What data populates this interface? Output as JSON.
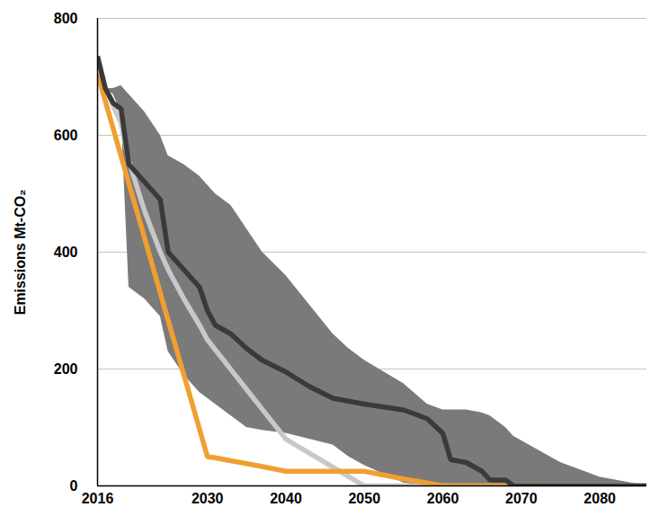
{
  "chart_data": {
    "type": "line",
    "y_label": "Emissions Mt-CO₂",
    "x": [
      2016,
      2017,
      2018,
      2019,
      2020,
      2022,
      2024,
      2025,
      2027,
      2029,
      2030,
      2031,
      2033,
      2035,
      2037,
      2040,
      2043,
      2046,
      2048,
      2050,
      2055,
      2058,
      2060,
      2061,
      2063,
      2065,
      2066,
      2068,
      2069,
      2075,
      2080,
      2086
    ],
    "xlim": [
      2016,
      2086
    ],
    "xticks": [
      2016,
      2030,
      2040,
      2050,
      2060,
      2070,
      2080
    ],
    "ylim": [
      0,
      800
    ],
    "yticks": [
      0,
      200,
      400,
      600,
      800
    ],
    "grid": true,
    "series": [
      {
        "type": "area",
        "color": "#7a7a7a",
        "values": [
          705,
          680,
          680,
          685,
          670,
          640,
          600,
          565,
          550,
          530,
          515,
          500,
          480,
          440,
          400,
          360,
          310,
          260,
          235,
          215,
          175,
          140,
          130,
          130,
          130,
          125,
          120,
          100,
          85,
          40,
          15,
          0
        ],
        "lower": [
          705,
          680,
          670,
          640,
          340,
          320,
          290,
          230,
          190,
          160,
          150,
          140,
          120,
          100,
          95,
          90,
          80,
          70,
          50,
          35,
          5,
          0,
          0,
          0,
          0,
          0,
          0,
          0,
          0,
          0,
          0,
          0
        ]
      },
      {
        "type": "line",
        "color": "#c8c8c8",
        "values": [
          705,
          680,
          650,
          620,
          555,
          470,
          400,
          370,
          320,
          275,
          250,
          233,
          199,
          165,
          131,
          80,
          56,
          32,
          16,
          0,
          0,
          0,
          0,
          0,
          0,
          0,
          0,
          0,
          0,
          0,
          0,
          0
        ]
      },
      {
        "type": "line",
        "color": "#f0a030",
        "values": [
          705,
          658,
          611,
          564,
          517,
          424,
          330,
          283,
          190,
          97,
          50,
          48,
          43,
          38,
          33,
          25,
          25,
          25,
          25,
          25,
          12,
          5,
          0,
          0,
          0,
          0,
          0,
          0,
          0,
          0,
          0,
          0
        ]
      },
      {
        "type": "line",
        "color": "#3a3a3a",
        "values": [
          735,
          680,
          655,
          645,
          550,
          520,
          490,
          400,
          370,
          340,
          300,
          275,
          260,
          235,
          215,
          195,
          170,
          150,
          145,
          140,
          130,
          115,
          90,
          45,
          40,
          25,
          10,
          10,
          0,
          0,
          0,
          0
        ]
      }
    ]
  }
}
